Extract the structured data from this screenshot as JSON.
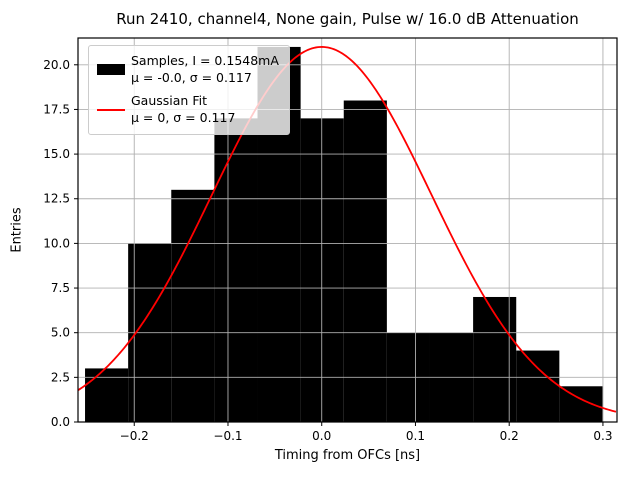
{
  "title": "Run 2410, channel4, None gain, Pulse w/ 16.0 dB Attenuation",
  "legend": {
    "samples_label": "Samples, I = 0.1548mA",
    "samples_stats": "μ = -0.0, σ = 0.117",
    "fit_label": "Gaussian Fit",
    "fit_stats": "μ = 0, σ = 0.117"
  },
  "chart_data": {
    "type": "bar",
    "subtype": "histogram-with-gaussian-fit",
    "title": "Run 2410, channel4, None gain, Pulse w/ 16.0 dB Attenuation",
    "xlabel": "Timing from OFCs [ns]",
    "ylabel": "Entries",
    "xlim": [
      -0.26,
      0.315
    ],
    "ylim": [
      0,
      21.5
    ],
    "grid": true,
    "legend_position": "upper left",
    "bins": {
      "start": -0.2525,
      "width": 0.046,
      "values": [
        3,
        10,
        13,
        17,
        21,
        17,
        18,
        5,
        5,
        7,
        4,
        2
      ]
    },
    "gaussian": {
      "mu": 0,
      "sigma": 0.117,
      "amplitude": 21
    },
    "xticks": {
      "values": [
        -0.2,
        -0.1,
        0.0,
        0.1,
        0.2,
        0.3
      ],
      "labels": [
        "−0.2",
        "−0.1",
        "0.0",
        "0.1",
        "0.2",
        "0.3"
      ]
    },
    "yticks": {
      "values": [
        0,
        2.5,
        5,
        7.5,
        10,
        12.5,
        15,
        17.5,
        20
      ],
      "labels": [
        "0.0",
        "2.5",
        "5.0",
        "7.5",
        "10.0",
        "12.5",
        "15.0",
        "17.5",
        "20.0"
      ]
    },
    "colors": {
      "bars": "#000000",
      "fit": "#ff0000",
      "grid": "#b0b0b0",
      "frame": "#000000"
    }
  }
}
